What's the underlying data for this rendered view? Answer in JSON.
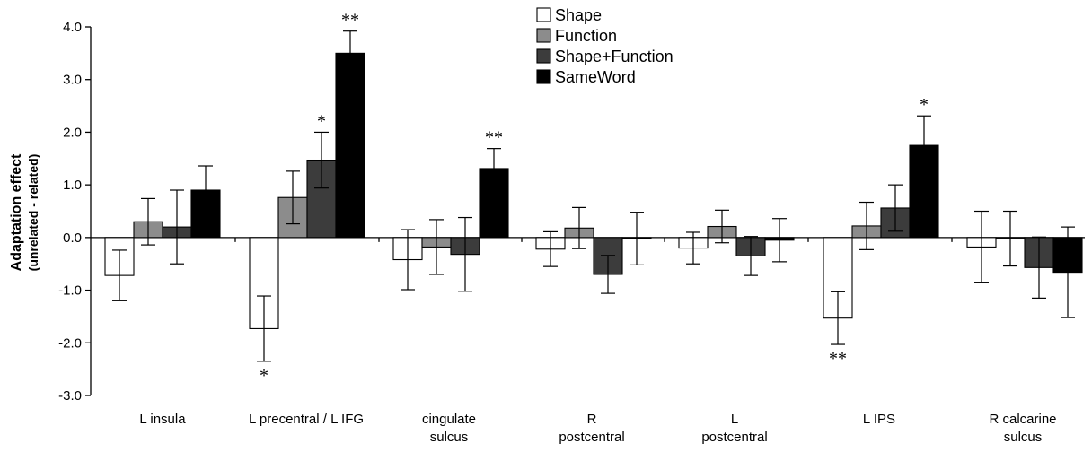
{
  "chart_data": {
    "type": "bar",
    "ylabel": "Adaptation effect",
    "ylabel_sub": "(unrelated - related)",
    "ylim": [
      -3.0,
      4.0
    ],
    "yticks": [
      4.0,
      3.0,
      2.0,
      1.0,
      0.0,
      -1.0,
      -2.0,
      -3.0
    ],
    "ytick_labels": [
      "4.0",
      "3.0",
      "2.0",
      "1.0",
      "0.0",
      "-1.0",
      "-2.0",
      "-3.0"
    ],
    "grid": false,
    "legend_position": "top-center",
    "categories": [
      [
        "L insula"
      ],
      [
        "L precentral / L IFG"
      ],
      [
        "cingulate",
        "sulcus"
      ],
      [
        "R",
        "postcentral"
      ],
      [
        "L",
        "postcentral"
      ],
      [
        "L IPS"
      ],
      [
        "R calcarine",
        "sulcus"
      ]
    ],
    "series": [
      {
        "name": "Shape",
        "color": "#ffffff",
        "values": [
          -0.72,
          -1.73,
          -0.42,
          -0.22,
          -0.2,
          -1.53,
          -0.18
        ],
        "errors": [
          0.48,
          0.62,
          0.57,
          0.33,
          0.3,
          0.5,
          0.68
        ],
        "significance": [
          "",
          "*",
          "",
          "",
          "",
          "**",
          ""
        ]
      },
      {
        "name": "Function",
        "color": "#8c8c8c",
        "values": [
          0.3,
          0.76,
          -0.18,
          0.18,
          0.21,
          0.22,
          -0.02
        ],
        "errors": [
          0.44,
          0.5,
          0.52,
          0.39,
          0.31,
          0.45,
          0.52
        ],
        "significance": [
          "",
          "",
          "",
          "",
          "",
          "",
          ""
        ]
      },
      {
        "name": "Shape+Function",
        "color": "#3c3c3c",
        "values": [
          0.2,
          1.47,
          -0.32,
          -0.7,
          -0.35,
          0.56,
          -0.57
        ],
        "errors": [
          0.7,
          0.53,
          0.7,
          0.36,
          0.37,
          0.44,
          0.58
        ],
        "significance": [
          "",
          "*",
          "",
          "",
          "",
          "",
          ""
        ]
      },
      {
        "name": "SameWord",
        "color": "#000000",
        "values": [
          0.9,
          3.5,
          1.31,
          -0.02,
          -0.05,
          1.75,
          -0.66
        ],
        "errors": [
          0.46,
          0.42,
          0.38,
          0.5,
          0.41,
          0.56,
          0.86
        ],
        "significance": [
          "",
          "**",
          "**",
          "",
          "",
          "*",
          ""
        ]
      }
    ]
  }
}
